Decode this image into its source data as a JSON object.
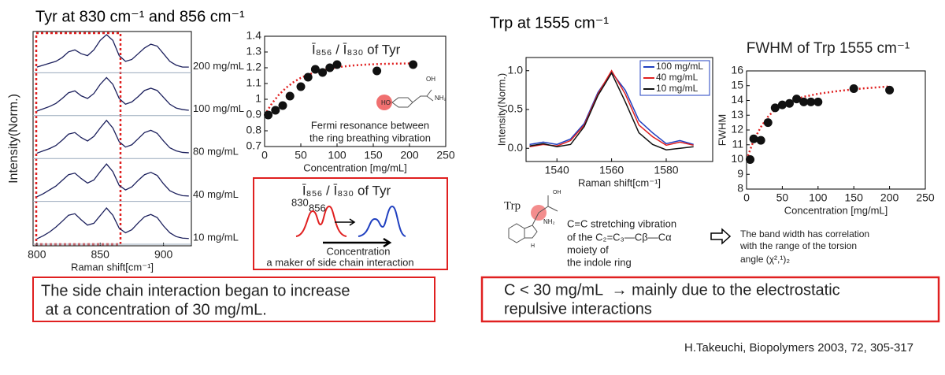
{
  "slide": {
    "tyr_heading": "Tyr at 830 cm⁻¹ and 856 cm⁻¹",
    "trp_heading": "Trp at 1555 cm⁻¹",
    "fermi_1": "Fermi resonance between",
    "fermi_2": "the ring breathing vibration",
    "box_title": "Ī₈₅₆ / Ī₈₃₀ of Tyr",
    "box_peak_830": "830",
    "box_peak_856": "856",
    "box_arrow_label": "Concentration",
    "box_caption": "a maker of side chain interaction",
    "trp_label": "Trp",
    "trp_1": "C=C stretching vibration",
    "trp_2": "of the C₂=C₃—Cβ—Cα",
    "trp_3": "moiety of",
    "trp_4": "the indole ring",
    "corr_1": "The band width has correlation",
    "corr_2": "with the range of the torsion",
    "corr_3": "angle (χ²,¹)₂",
    "struct_ho": "HO",
    "struct_oh": "OH",
    "struct_nh2": "NH₂",
    "struct_trp_oh": "OH",
    "struct_trp_nh2": "NH₂",
    "struct_trp_h": "H",
    "conclusion_left_1": "The side chain interaction began to increase",
    "conclusion_left_2": " at a concentration of 30 mg/mL.",
    "conclusion_right_1": "C < 30 mg/mL  → mainly due to the electrostatic",
    "conclusion_right_2": "repulsive interactions",
    "citation": "H.Takeuchi, Biopolymers 2003, 72, 305-317"
  },
  "chart_data": [
    {
      "type": "line",
      "stacked": true,
      "xlabel": "Raman shift[cm⁻¹]",
      "ylabel": "Intensity(Norm.)",
      "xlim": [
        797,
        922
      ],
      "xticks": [
        800,
        850,
        900
      ],
      "x": [
        800,
        805,
        810,
        815,
        820,
        825,
        830,
        835,
        840,
        845,
        850,
        855,
        860,
        865,
        870,
        875,
        880,
        885,
        890,
        895,
        900,
        905,
        910,
        915,
        920
      ],
      "series": [
        {
          "name": "200 mg/mL",
          "color": "#1b1f5c",
          "values": [
            0.15,
            0.2,
            0.25,
            0.3,
            0.4,
            0.55,
            0.6,
            0.5,
            0.45,
            0.6,
            0.85,
            1.0,
            0.85,
            0.45,
            0.3,
            0.35,
            0.5,
            0.65,
            0.75,
            0.7,
            0.5,
            0.3,
            0.2,
            0.15,
            0.15
          ]
        },
        {
          "name": "100 mg/mL",
          "color": "#1b1f5c",
          "values": [
            0.12,
            0.18,
            0.24,
            0.32,
            0.45,
            0.6,
            0.65,
            0.52,
            0.45,
            0.58,
            0.82,
            1.0,
            0.82,
            0.45,
            0.3,
            0.36,
            0.5,
            0.66,
            0.72,
            0.66,
            0.48,
            0.3,
            0.2,
            0.16,
            0.14
          ]
        },
        {
          "name": "80 mg/mL",
          "color": "#1b1f5c",
          "values": [
            0.14,
            0.2,
            0.26,
            0.34,
            0.48,
            0.64,
            0.68,
            0.55,
            0.46,
            0.58,
            0.8,
            1.0,
            0.8,
            0.44,
            0.3,
            0.36,
            0.52,
            0.68,
            0.74,
            0.66,
            0.46,
            0.28,
            0.2,
            0.16,
            0.15
          ]
        },
        {
          "name": "40 mg/mL",
          "color": "#1b1f5c",
          "values": [
            0.12,
            0.2,
            0.3,
            0.4,
            0.55,
            0.7,
            0.74,
            0.6,
            0.48,
            0.56,
            0.78,
            0.98,
            0.78,
            0.42,
            0.3,
            0.38,
            0.55,
            0.7,
            0.76,
            0.68,
            0.46,
            0.28,
            0.2,
            0.15,
            0.14
          ]
        },
        {
          "name": "10 mg/mL",
          "color": "#1b1f5c",
          "values": [
            0.14,
            0.22,
            0.32,
            0.45,
            0.6,
            0.76,
            0.8,
            0.64,
            0.5,
            0.55,
            0.75,
            0.95,
            0.76,
            0.42,
            0.3,
            0.38,
            0.56,
            0.72,
            0.78,
            0.7,
            0.48,
            0.3,
            0.2,
            0.16,
            0.15
          ]
        }
      ]
    },
    {
      "type": "scatter",
      "title": "Ī₈₅₆ / Ī₈₃₀ of Tyr",
      "xlabel": "Concentration [mg/mL]",
      "xlim": [
        0,
        250
      ],
      "xticks": [
        0,
        50,
        100,
        150,
        200,
        250
      ],
      "ylim": [
        0.7,
        1.4
      ],
      "yticks": [
        0.7,
        0.8,
        0.9,
        1,
        1.1,
        1.2,
        1.3,
        1.4
      ],
      "points": {
        "color": "#111111",
        "x": [
          5,
          15,
          25,
          35,
          50,
          60,
          70,
          80,
          90,
          100,
          155,
          205
        ],
        "values": [
          0.9,
          0.93,
          0.96,
          1.02,
          1.08,
          1.14,
          1.19,
          1.17,
          1.2,
          1.22,
          1.18,
          1.22
        ]
      },
      "fit": {
        "color": "#e02020",
        "x": [
          0,
          10,
          20,
          30,
          40,
          50,
          60,
          70,
          80,
          90,
          100,
          120,
          140,
          160,
          180,
          210
        ],
        "values": [
          0.9,
          0.973,
          1.03,
          1.074,
          1.109,
          1.136,
          1.156,
          1.172,
          1.185,
          1.194,
          1.203,
          1.214,
          1.22,
          1.224,
          1.226,
          1.228
        ]
      }
    },
    {
      "type": "line",
      "stacked": false,
      "xlabel": "Raman shift[cm⁻¹]",
      "ylabel": "Intensity(Norm.)",
      "xlim": [
        1528.7,
        1597
      ],
      "xticks": [
        1540,
        1560,
        1580
      ],
      "ylim": [
        -0.17,
        1.17
      ],
      "yticks": [
        {
          "value": 0,
          "label": "0.0"
        },
        {
          "value": 0.5,
          "label": "0.5"
        },
        {
          "value": 1,
          "label": "1.0"
        }
      ],
      "x": [
        1525,
        1530,
        1535,
        1540,
        1545,
        1550,
        1555,
        1560,
        1565,
        1570,
        1575,
        1580,
        1585,
        1590
      ],
      "series": [
        {
          "name": "100 mg/mL",
          "color": "#2040c0",
          "values": [
            null,
            0.05,
            0.08,
            0.05,
            0.12,
            0.32,
            0.72,
            0.98,
            0.75,
            0.36,
            0.2,
            0.06,
            0.1,
            0.05
          ]
        },
        {
          "name": "40 mg/mL",
          "color": "#e02020",
          "values": [
            null,
            0.02,
            0.05,
            0.03,
            0.1,
            0.3,
            0.7,
            1.0,
            0.7,
            0.3,
            0.15,
            0.04,
            0.08,
            0.04
          ]
        },
        {
          "name": "10 mg/mL",
          "color": "#111111",
          "values": [
            null,
            0.03,
            0.06,
            0.02,
            0.05,
            0.28,
            0.68,
            0.97,
            0.6,
            0.2,
            0.05,
            -0.02,
            0.0,
            0.02
          ]
        }
      ]
    },
    {
      "type": "scatter",
      "title": "FWHM of Trp 1555 cm⁻¹",
      "xlabel": "Concentration [mg/mL]",
      "ylabel": "FWHM",
      "xlim": [
        0,
        250
      ],
      "xticks": [
        0,
        50,
        100,
        150,
        200,
        250
      ],
      "ylim": [
        8,
        16
      ],
      "yticks": [
        8,
        9,
        10,
        11,
        12,
        13,
        14,
        15,
        16
      ],
      "points": {
        "color": "#111111",
        "x": [
          5,
          10,
          20,
          30,
          40,
          50,
          60,
          70,
          80,
          90,
          100,
          150,
          200
        ],
        "values": [
          10,
          11.4,
          11.3,
          12.5,
          13.5,
          13.7,
          13.8,
          14.1,
          13.9,
          13.9,
          13.9,
          14.8,
          14.7
        ]
      },
      "fit": {
        "color": "#e02020",
        "x": [
          0,
          10,
          20,
          30,
          40,
          50,
          60,
          80,
          100,
          130,
          160,
          200
        ],
        "values": [
          10,
          11.3,
          12.2,
          12.9,
          13.4,
          13.7,
          13.95,
          14.25,
          14.45,
          14.65,
          14.8,
          14.95
        ]
      }
    }
  ]
}
